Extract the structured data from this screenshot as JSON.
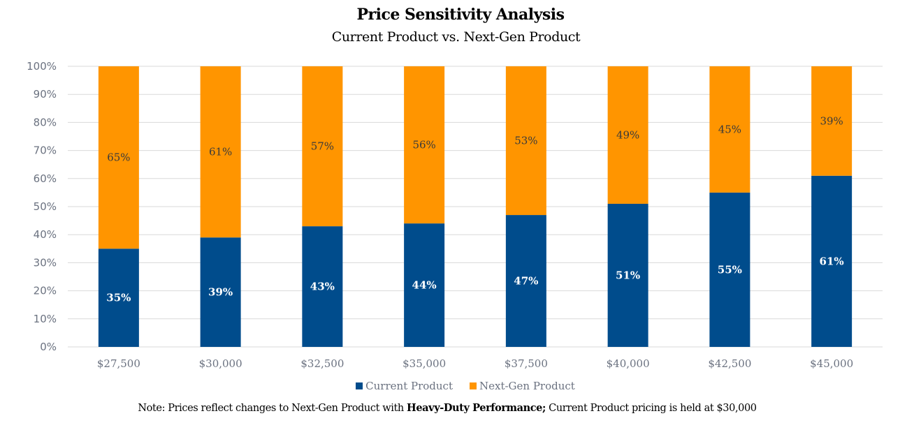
{
  "chart_data": {
    "type": "bar",
    "stacked": true,
    "title": "Price Sensitivity Analysis",
    "subtitle": "Current Product vs. Next-Gen Product",
    "xlabel": "",
    "ylabel": "",
    "ylim": [
      0,
      100
    ],
    "y_ticks": [
      "0%",
      "10%",
      "20%",
      "30%",
      "40%",
      "50%",
      "60%",
      "70%",
      "80%",
      "90%",
      "100%"
    ],
    "grid": true,
    "legend_position": "bottom",
    "categories": [
      "$27,500",
      "$30,000",
      "$32,500",
      "$35,000",
      "$37,500",
      "$40,000",
      "$42,500",
      "$45,000"
    ],
    "series": [
      {
        "name": "Current Product",
        "color": "#004c8c",
        "values": [
          35,
          39,
          43,
          44,
          47,
          51,
          55,
          61
        ]
      },
      {
        "name": "Next-Gen Product",
        "color": "#ff9500",
        "values": [
          65,
          61,
          57,
          56,
          53,
          49,
          45,
          39
        ]
      }
    ]
  },
  "note": {
    "prefix": "Note:  Prices reflect changes to Next-Gen Product with ",
    "bold": "Heavy-Duty Performance;",
    "suffix": " Current Product pricing is held at $30,000"
  }
}
